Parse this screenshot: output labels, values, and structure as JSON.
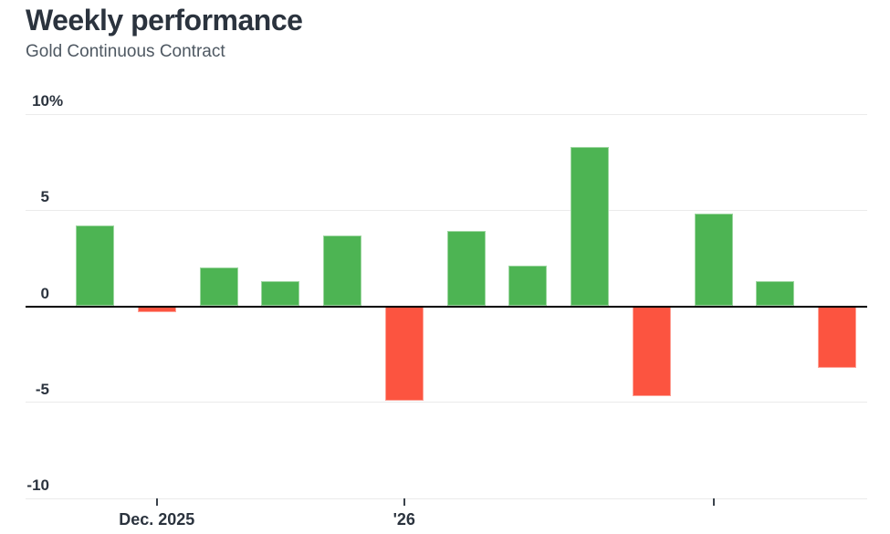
{
  "header": {
    "title": "Weekly performance",
    "subtitle": "Gold Continuous Contract"
  },
  "chart_data": {
    "type": "bar",
    "title": "Weekly performance",
    "subtitle": "Gold Continuous Contract",
    "unit": "%",
    "values": [
      4.2,
      -0.3,
      2.0,
      1.3,
      3.7,
      -4.9,
      3.9,
      2.1,
      8.3,
      -4.7,
      4.8,
      1.3,
      -3.2
    ],
    "ylim": [
      -10,
      10
    ],
    "yticks": [
      {
        "value": 10,
        "label": "10%"
      },
      {
        "value": 5,
        "label": "5"
      },
      {
        "value": 0,
        "label": "0"
      },
      {
        "value": -5,
        "label": "-5"
      },
      {
        "value": -10,
        "label": "-10"
      }
    ],
    "xticks": [
      {
        "bar_index": 1,
        "label": "Dec. 2025"
      },
      {
        "bar_index": 5,
        "label": "'26"
      },
      {
        "bar_index": 10,
        "label": ""
      }
    ],
    "colors": {
      "positive": "#4db453",
      "negative": "#fc5440",
      "zero_line": "#000000",
      "gridline": "#ebebeb",
      "axis_text": "#2b333e"
    },
    "grid": true,
    "legend": false
  }
}
